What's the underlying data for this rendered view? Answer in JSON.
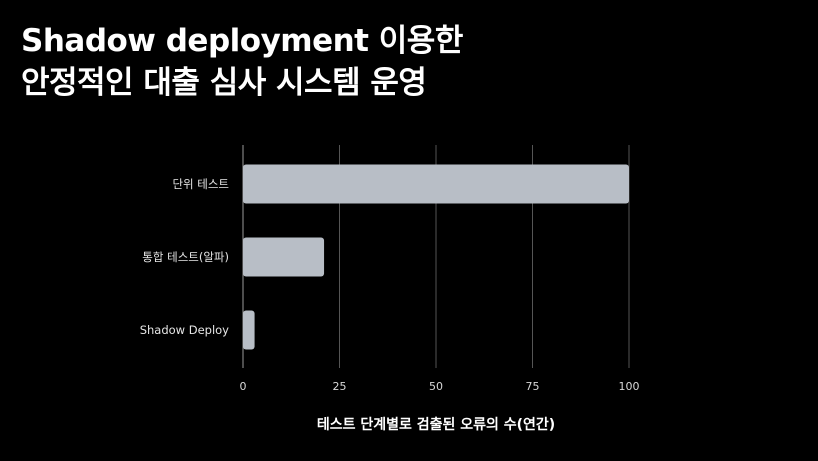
{
  "slide": {
    "title_line1": "Shadow deployment 이용한",
    "title_line2": "안정적인 대출 심사 시스템 운영"
  },
  "chart_data": {
    "type": "bar",
    "orientation": "horizontal",
    "categories": [
      "단위 테스트",
      "통합 테스트(알파)",
      "Shadow Deploy"
    ],
    "values": [
      100,
      21,
      3
    ],
    "xlabel": "테스트 단계별로 검출된 오류의 수(연간)",
    "ylabel": "",
    "xlim": [
      0,
      100
    ],
    "xticks": [
      0,
      25,
      50,
      75,
      100
    ],
    "grid": true,
    "bar_color": "#b8bec6",
    "grid_color": "#555555"
  }
}
